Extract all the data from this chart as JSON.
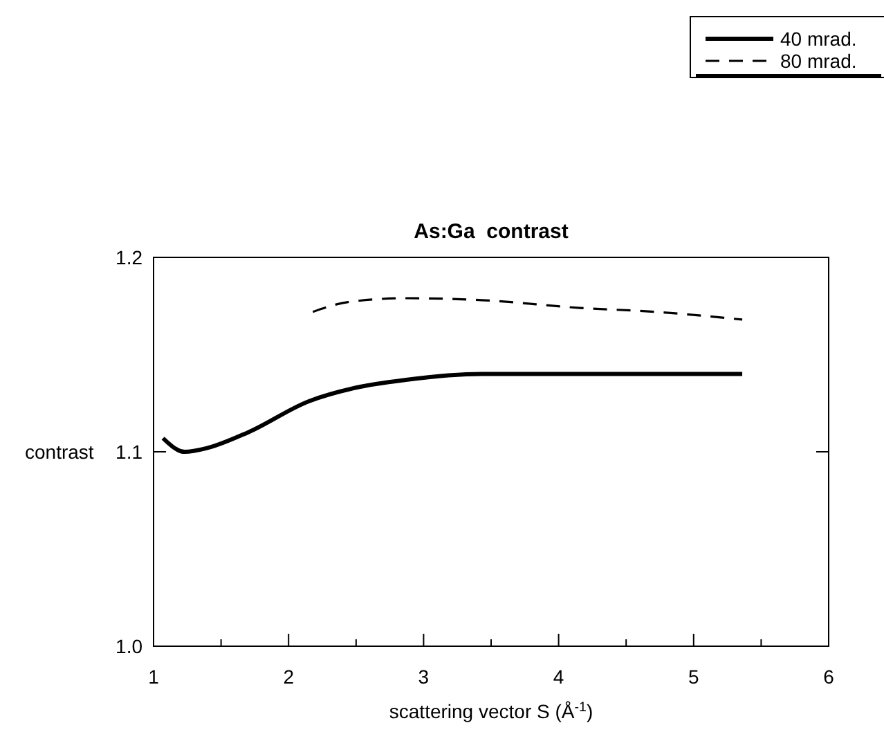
{
  "chart_data": {
    "type": "line",
    "title": "As:Ga  contrast",
    "xlabel": "scattering vector S (Å$^{-1}$)",
    "ylabel": "contrast",
    "xlim": [
      1,
      6
    ],
    "xticks": [
      1,
      2,
      3,
      4,
      5,
      6
    ],
    "ylim": [
      1.0,
      1.2
    ],
    "yticks": [
      {
        "value": 1.0,
        "label": "1.0"
      },
      1.1,
      1.2
    ],
    "grid": false,
    "legend": "top right",
    "series": [
      {
        "name": "40 mrad.",
        "color": "#000000",
        "line_style": "solid",
        "x": [
          1.07,
          1.23,
          1.4,
          1.7,
          2.15,
          2.5,
          2.87,
          3.43,
          4.0,
          4.5,
          5.0,
          5.36
        ],
        "values": [
          1.107,
          1.1,
          1.102,
          1.11,
          1.126,
          1.133,
          1.137,
          1.14,
          1.14,
          1.14,
          1.14,
          1.14
        ]
      },
      {
        "name": "80 mrad.",
        "color": "#000000",
        "line_style": "dashed",
        "x": [
          2.18,
          2.44,
          2.87,
          3.43,
          4.16,
          4.71,
          5.36
        ],
        "values": [
          1.172,
          1.177,
          1.179,
          1.178,
          1.174,
          1.172,
          1.168
        ]
      }
    ]
  }
}
